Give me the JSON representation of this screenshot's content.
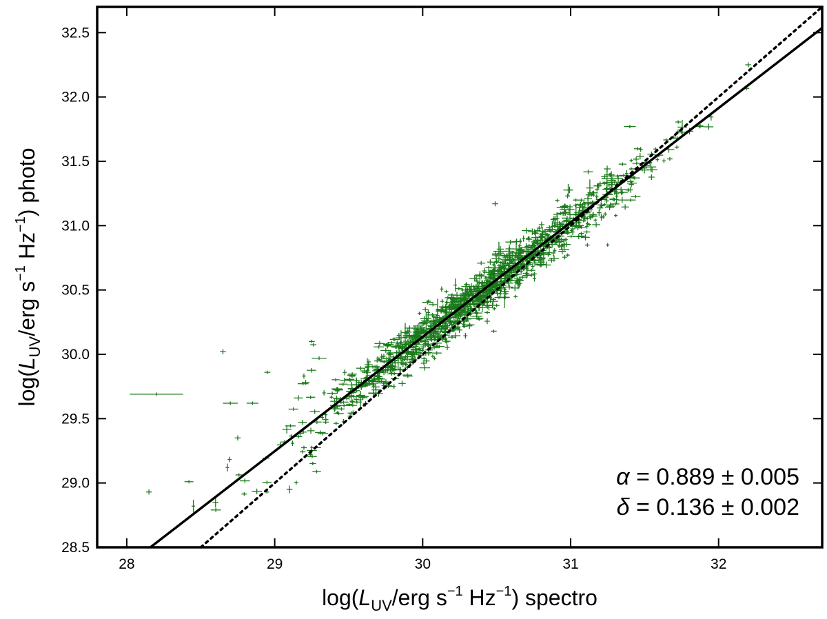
{
  "chart_data": {
    "type": "scatter",
    "title": "",
    "xlabel": {
      "prefix": "log(",
      "var": "L",
      "sub": "UV",
      "mid": "/erg s",
      "exp1": "−1",
      "hz": " Hz",
      "exp2": "−1",
      "suffix": ") spectro"
    },
    "ylabel": {
      "prefix": "log(",
      "var": "L",
      "sub": "UV",
      "mid": "/erg s",
      "exp1": "−1",
      "hz": " Hz",
      "exp2": "−1",
      "suffix": ") photo"
    },
    "xlim": [
      27.8,
      32.7
    ],
    "ylim": [
      28.5,
      32.7
    ],
    "x_ticks": [
      28,
      29,
      30,
      31,
      32
    ],
    "x_tick_labels": [
      "28",
      "29",
      "30",
      "31",
      "32"
    ],
    "y_ticks": [
      28.5,
      29.0,
      29.5,
      30.0,
      30.5,
      31.0,
      31.5,
      32.0,
      32.5
    ],
    "y_tick_labels": [
      "28.5",
      "29.0",
      "29.5",
      "30.0",
      "30.5",
      "31.0",
      "31.5",
      "32.0",
      "32.5"
    ],
    "grid": false,
    "point_color": "#1a7a1a",
    "point_count": 1400,
    "fit_line": {
      "style": "solid",
      "color": "#000000",
      "slope": 0.889,
      "intercept": 0.136,
      "pivot": 30.0
    },
    "identity_line": {
      "style": "dotted",
      "color": "#000000",
      "slope": 1.0,
      "intercept": 0.0
    },
    "outliers": [
      {
        "x": 28.2,
        "y": 29.69,
        "xerr": 0.18,
        "yerr": 0.01
      },
      {
        "x": 28.15,
        "y": 28.93,
        "xerr": 0.02,
        "yerr": 0.02
      },
      {
        "x": 28.42,
        "y": 29.01,
        "xerr": 0.03,
        "yerr": 0.01
      },
      {
        "x": 28.65,
        "y": 30.02,
        "xerr": 0.02,
        "yerr": 0.02
      },
      {
        "x": 28.7,
        "y": 29.62,
        "xerr": 0.05,
        "yerr": 0.01
      },
      {
        "x": 28.45,
        "y": 28.82,
        "xerr": 0.01,
        "yerr": 0.05
      },
      {
        "x": 28.75,
        "y": 29.35,
        "xerr": 0.02,
        "yerr": 0.02
      },
      {
        "x": 28.95,
        "y": 29.86,
        "xerr": 0.02,
        "yerr": 0.01
      },
      {
        "x": 28.85,
        "y": 29.62,
        "xerr": 0.04,
        "yerr": 0.01
      },
      {
        "x": 28.68,
        "y": 29.12,
        "xerr": 0.01,
        "yerr": 0.03
      },
      {
        "x": 29.25,
        "y": 30.1,
        "xerr": 0.02,
        "yerr": 0.01
      },
      {
        "x": 29.3,
        "y": 29.97,
        "xerr": 0.05,
        "yerr": 0.01
      },
      {
        "x": 30.49,
        "y": 31.17,
        "xerr": 0.02,
        "yerr": 0.02
      },
      {
        "x": 31.25,
        "y": 30.85,
        "xerr": 0.01,
        "yerr": 0.01
      },
      {
        "x": 30.5,
        "y": 30.38,
        "xerr": 0.02,
        "yerr": 0.01
      },
      {
        "x": 30.48,
        "y": 30.18,
        "xerr": 0.02,
        "yerr": 0.01
      },
      {
        "x": 32.2,
        "y": 32.25,
        "xerr": 0.02,
        "yerr": 0.02
      },
      {
        "x": 31.4,
        "y": 31.77,
        "xerr": 0.04,
        "yerr": 0.01
      },
      {
        "x": 29.1,
        "y": 28.95,
        "xerr": 0.02,
        "yerr": 0.03
      },
      {
        "x": 28.6,
        "y": 28.85,
        "xerr": 0.02,
        "yerr": 0.04
      }
    ],
    "annotations": [
      {
        "symbol": "α",
        "text": " = 0.889 ± 0.005"
      },
      {
        "symbol": "δ",
        "text": " = 0.136 ± 0.002"
      }
    ]
  }
}
